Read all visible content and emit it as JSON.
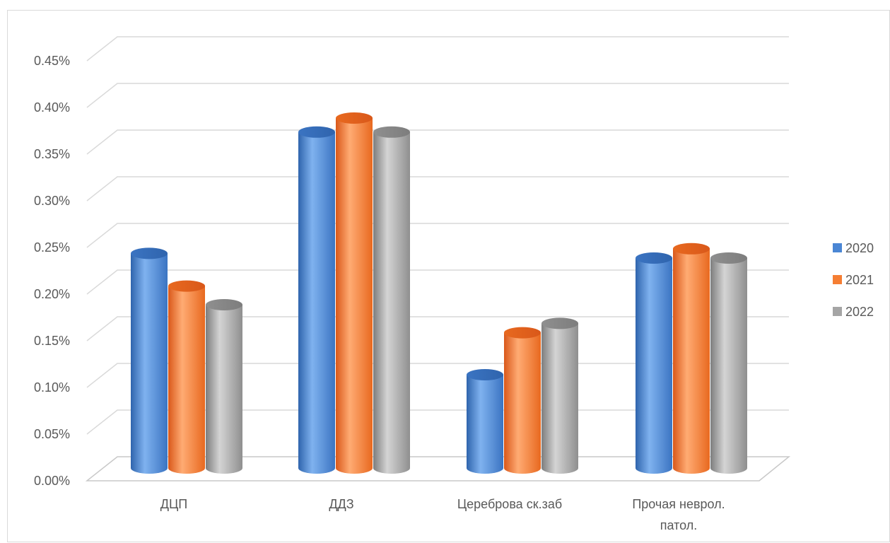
{
  "chart_data": {
    "type": "bar",
    "categories": [
      "ДЦП",
      "ДДЗ",
      "Цереброва ск.заб",
      "Прочая неврол. патол."
    ],
    "series": [
      {
        "name": "2020",
        "values": [
          0.23,
          0.36,
          0.1,
          0.225
        ]
      },
      {
        "name": "2021",
        "values": [
          0.195,
          0.375,
          0.145,
          0.235
        ]
      },
      {
        "name": "2022",
        "values": [
          0.175,
          0.36,
          0.155,
          0.225
        ]
      }
    ],
    "ylim": [
      0,
      0.45
    ],
    "yticks": [
      "0.00%",
      "0.05%",
      "0.10%",
      "0.15%",
      "0.20%",
      "0.25%",
      "0.30%",
      "0.35%",
      "0.40%",
      "0.45%"
    ],
    "grid": true,
    "legend": "right",
    "style": "3d-cylinder",
    "colors": [
      "#4a86d4",
      "#f57e33",
      "#a5a5a5"
    ]
  }
}
